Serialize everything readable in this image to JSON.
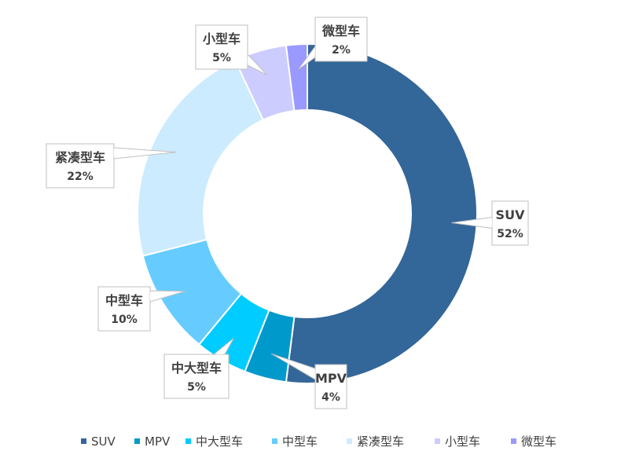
{
  "chart_data": {
    "type": "pie",
    "variant": "doughnut",
    "title": "",
    "legend_position": "bottom",
    "slices": [
      {
        "label": "SUV",
        "value": 52,
        "value_label": "52%",
        "color": "#336699"
      },
      {
        "label": "MPV",
        "value": 4,
        "value_label": "4%",
        "color": "#0099CC"
      },
      {
        "label": "中大型车",
        "value": 5,
        "value_label": "5%",
        "color": "#00CCFF"
      },
      {
        "label": "中型车",
        "value": 10,
        "value_label": "10%",
        "color": "#66CCFF"
      },
      {
        "label": "紧凑型车",
        "value": 22,
        "value_label": "22%",
        "color": "#CCEBFF"
      },
      {
        "label": "小型车",
        "value": 5,
        "value_label": "5%",
        "color": "#CCCCFF"
      },
      {
        "label": "微型车",
        "value": 2,
        "value_label": "2%",
        "color": "#9999FF"
      }
    ]
  }
}
